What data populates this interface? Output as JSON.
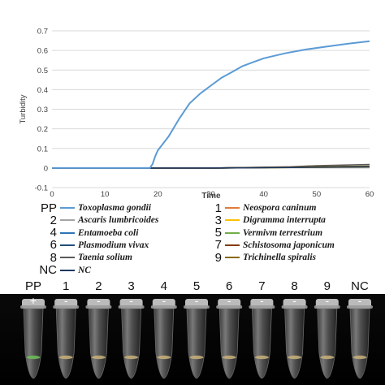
{
  "chart_data": {
    "type": "line",
    "xlabel": "Time",
    "ylabel": "Turbidity",
    "xlim": [
      0,
      60
    ],
    "ylim": [
      -0.1,
      0.7
    ],
    "xticks": [
      0,
      10,
      20,
      30,
      40,
      50,
      60
    ],
    "yticks": [
      -0.1,
      0,
      0.1,
      0.2,
      0.3,
      0.4,
      0.5,
      0.6,
      0.7
    ],
    "grid": "horizontal",
    "series": [
      {
        "id": "PP",
        "name": "Toxoplasma gondii",
        "color": "#5b9bd5",
        "x": [
          0,
          18.5,
          19,
          19.5,
          20,
          22,
          24,
          26,
          28,
          30,
          32,
          34,
          36,
          38,
          40,
          44,
          48,
          52,
          56,
          60
        ],
        "y": [
          0,
          0,
          0.02,
          0.06,
          0.09,
          0.16,
          0.25,
          0.33,
          0.38,
          0.42,
          0.46,
          0.49,
          0.52,
          0.54,
          0.56,
          0.585,
          0.605,
          0.62,
          0.635,
          0.647
        ]
      },
      {
        "id": "1",
        "name": "Neospora caninum",
        "color": "#e07b39",
        "x": [
          0,
          30,
          45,
          60
        ],
        "y": [
          0,
          0,
          0.003,
          0.006
        ]
      },
      {
        "id": "2",
        "name": "Ascaris lumbricoides",
        "color": "#a5a5a5",
        "x": [
          0,
          30,
          45,
          60
        ],
        "y": [
          0,
          0,
          0.004,
          0.008
        ]
      },
      {
        "id": "3",
        "name": "Digramma interrupta",
        "color": "#ffc000",
        "x": [
          0,
          30,
          45,
          60
        ],
        "y": [
          0,
          0,
          0.003,
          0.005
        ]
      },
      {
        "id": "4",
        "name": "Entamoeba coli",
        "color": "#2e75b6",
        "x": [
          0,
          30,
          45,
          60
        ],
        "y": [
          0,
          0,
          0.004,
          0.007
        ]
      },
      {
        "id": "5",
        "name": "Vermivm terrestrium",
        "color": "#70ad47",
        "x": [
          0,
          30,
          45,
          60
        ],
        "y": [
          0,
          0,
          0.003,
          0.006
        ]
      },
      {
        "id": "6",
        "name": "Plasmodium vivax",
        "color": "#1f4e79",
        "x": [
          0,
          30,
          45,
          60
        ],
        "y": [
          0,
          0,
          0.004,
          0.009
        ]
      },
      {
        "id": "7",
        "name": "Schistosoma japonicum",
        "color": "#843c0c",
        "x": [
          0,
          30,
          45,
          60
        ],
        "y": [
          0,
          0,
          0.004,
          0.008
        ]
      },
      {
        "id": "8",
        "name": "Taenia solium",
        "color": "#595959",
        "x": [
          0,
          30,
          45,
          50,
          60
        ],
        "y": [
          0,
          0,
          0.006,
          0.012,
          0.018
        ]
      },
      {
        "id": "9",
        "name": "Trichinella spiralis",
        "color": "#8b6914",
        "x": [
          0,
          30,
          45,
          60
        ],
        "y": [
          0,
          0,
          0.005,
          0.01
        ]
      },
      {
        "id": "NC",
        "name": "NC",
        "color": "#1f3864",
        "x": [
          0,
          30,
          45,
          60
        ],
        "y": [
          0,
          0,
          0.003,
          0.006
        ]
      }
    ]
  },
  "legend": {
    "left": [
      {
        "id": "PP",
        "label": "Toxoplasma gondii",
        "color": "#5b9bd5"
      },
      {
        "id": "2",
        "label": "Ascaris lumbricoides",
        "color": "#a5a5a5"
      },
      {
        "id": "4",
        "label": "Entamoeba coli",
        "color": "#2e75b6"
      },
      {
        "id": "6",
        "label": "Plasmodium vivax",
        "color": "#1f4e79"
      },
      {
        "id": "8",
        "label": "Taenia solium",
        "color": "#595959"
      },
      {
        "id": "NC",
        "label": "NC",
        "color": "#1f3864"
      }
    ],
    "right": [
      {
        "id": "1",
        "label": "Neospora caninum",
        "color": "#e07b39"
      },
      {
        "id": "3",
        "label": "Digramma interrupta",
        "color": "#ffc000"
      },
      {
        "id": "5",
        "label": "Vermivm terrestrium",
        "color": "#70ad47"
      },
      {
        "id": "7",
        "label": "Schistosoma japonicum",
        "color": "#843c0c"
      },
      {
        "id": "9",
        "label": "Trichinella spiralis",
        "color": "#8b6914"
      }
    ]
  },
  "tubes": {
    "lanes": [
      {
        "label": "PP",
        "sign": "+",
        "green": true
      },
      {
        "label": "1",
        "sign": "-",
        "green": false
      },
      {
        "label": "2",
        "sign": "-",
        "green": false
      },
      {
        "label": "3",
        "sign": "-",
        "green": false
      },
      {
        "label": "4",
        "sign": "-",
        "green": false
      },
      {
        "label": "5",
        "sign": "-",
        "green": false
      },
      {
        "label": "6",
        "sign": "-",
        "green": false
      },
      {
        "label": "7",
        "sign": "-",
        "green": false
      },
      {
        "label": "8",
        "sign": "-",
        "green": false
      },
      {
        "label": "9",
        "sign": "-",
        "green": false
      },
      {
        "label": "NC",
        "sign": "-",
        "green": false
      }
    ]
  }
}
